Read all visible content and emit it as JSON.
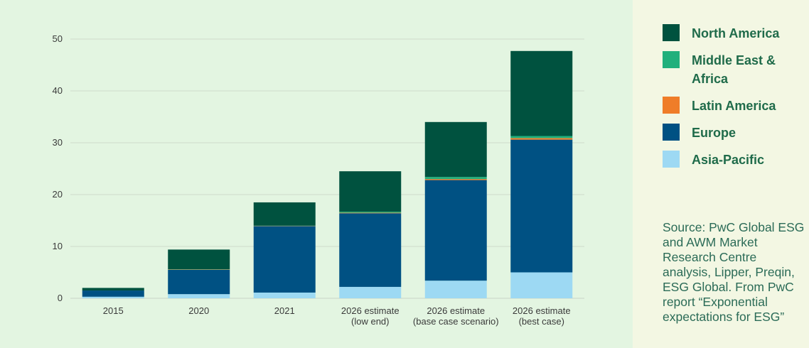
{
  "chart_data": {
    "type": "bar",
    "stacked": true,
    "categories": [
      [
        "2015"
      ],
      [
        "2020"
      ],
      [
        "2021"
      ],
      [
        "2026 estimate",
        "(low end)"
      ],
      [
        "2026 estimate",
        "(base case scenario)"
      ],
      [
        "2026 estimate",
        "(best case)"
      ]
    ],
    "series": [
      {
        "name": "Asia-Pacific",
        "color": "#9dd9f3",
        "values": [
          0.3,
          0.8,
          1.1,
          2.2,
          3.4,
          5.0
        ]
      },
      {
        "name": "Europe",
        "color": "#005183",
        "values": [
          1.2,
          4.7,
          12.8,
          14.2,
          19.4,
          25.6
        ]
      },
      {
        "name": "Latin America",
        "color": "#ef7d29",
        "values": [
          0.0,
          0.05,
          0.05,
          0.1,
          0.2,
          0.3
        ]
      },
      {
        "name": "Middle East & Africa",
        "color": "#21b07c",
        "values": [
          0.0,
          0.05,
          0.05,
          0.2,
          0.4,
          0.4
        ]
      },
      {
        "name": "North America",
        "color": "#00523f",
        "values": [
          0.5,
          3.8,
          4.5,
          7.8,
          10.6,
          16.4
        ]
      }
    ],
    "yticks": [
      0,
      10,
      20,
      30,
      40,
      50
    ],
    "ylim": [
      0,
      55
    ],
    "grid": true,
    "legend_position": "right"
  },
  "legend": [
    {
      "label": "North America",
      "color": "#00523f"
    },
    {
      "label": "Middle East & Africa",
      "color": "#21b07c"
    },
    {
      "label": "Latin America",
      "color": "#ef7d29"
    },
    {
      "label": "Europe",
      "color": "#005183"
    },
    {
      "label": "Asia-Pacific",
      "color": "#9dd9f3"
    }
  ],
  "source_note": "Source: PwC Global ESG and AWM Market Research Centre analysis, Lipper, Preqin, ESG Global. From PwC report “Exponential expectations for ESG”"
}
